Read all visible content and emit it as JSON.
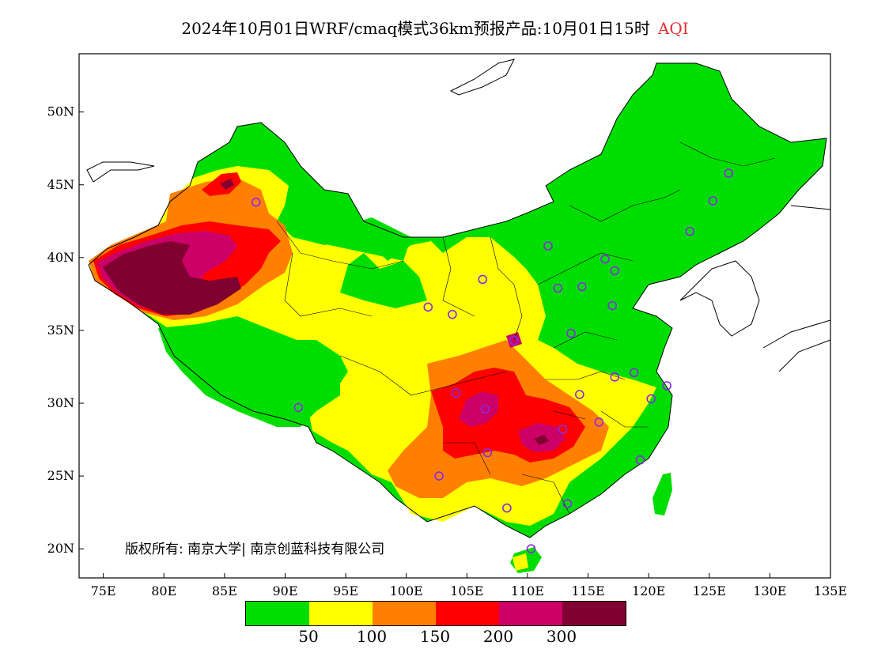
{
  "title": {
    "main": "2024年10月01日WRF/cmaq模式36km预报产品:10月01日15时",
    "variable": "AQI",
    "variable_color": "#e03030"
  },
  "axes": {
    "x_ticks": [
      "75E",
      "80E",
      "85E",
      "90E",
      "95E",
      "100E",
      "105E",
      "110E",
      "115E",
      "120E",
      "125E",
      "130E",
      "135E"
    ],
    "y_ticks": [
      "50N",
      "45N",
      "40N",
      "35N",
      "30N",
      "25N",
      "20N"
    ],
    "lon_range": [
      73,
      135
    ],
    "lat_range": [
      18,
      54
    ]
  },
  "legend": {
    "colors": [
      "#00dd00",
      "#ffff00",
      "#ff8000",
      "#ff0000",
      "#cc0066",
      "#800030"
    ],
    "labels": [
      "50",
      "100",
      "150",
      "200",
      "300"
    ]
  },
  "copyright": "版权所有: 南京大学| 南京创蓝科技有限公司",
  "colors": {
    "good": "#00dd00",
    "moderate": "#ffff00",
    "sensitive": "#ff8000",
    "unhealthy": "#ff0000",
    "very_unhealthy": "#cc0066",
    "hazardous": "#800030",
    "station_marker": "#8a2be2"
  },
  "stations": [
    {
      "lon": 87.6,
      "lat": 43.8
    },
    {
      "lon": 126.6,
      "lat": 45.8
    },
    {
      "lon": 125.3,
      "lat": 43.9
    },
    {
      "lon": 123.4,
      "lat": 41.8
    },
    {
      "lon": 111.7,
      "lat": 40.8
    },
    {
      "lon": 116.4,
      "lat": 39.9
    },
    {
      "lon": 117.2,
      "lat": 39.1
    },
    {
      "lon": 114.5,
      "lat": 38.0
    },
    {
      "lon": 112.5,
      "lat": 37.9
    },
    {
      "lon": 106.3,
      "lat": 38.5
    },
    {
      "lon": 117.0,
      "lat": 36.7
    },
    {
      "lon": 101.8,
      "lat": 36.6
    },
    {
      "lon": 103.8,
      "lat": 36.1
    },
    {
      "lon": 113.6,
      "lat": 34.8
    },
    {
      "lon": 108.9,
      "lat": 34.3
    },
    {
      "lon": 118.8,
      "lat": 32.1
    },
    {
      "lon": 117.2,
      "lat": 31.8
    },
    {
      "lon": 121.5,
      "lat": 31.2
    },
    {
      "lon": 120.2,
      "lat": 30.3
    },
    {
      "lon": 114.3,
      "lat": 30.6
    },
    {
      "lon": 104.1,
      "lat": 30.7
    },
    {
      "lon": 91.1,
      "lat": 29.7
    },
    {
      "lon": 106.5,
      "lat": 29.6
    },
    {
      "lon": 115.9,
      "lat": 28.7
    },
    {
      "lon": 112.9,
      "lat": 28.2
    },
    {
      "lon": 106.7,
      "lat": 26.6
    },
    {
      "lon": 119.3,
      "lat": 26.1
    },
    {
      "lon": 102.7,
      "lat": 25.0
    },
    {
      "lon": 113.3,
      "lat": 23.1
    },
    {
      "lon": 108.3,
      "lat": 22.8
    },
    {
      "lon": 110.3,
      "lat": 20.0
    }
  ]
}
